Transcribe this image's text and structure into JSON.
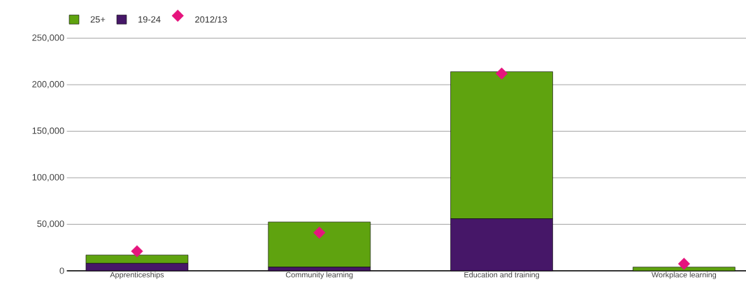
{
  "chart_data": {
    "type": "bar",
    "stacked": true,
    "categories": [
      "Apprenticeships",
      "Community learning",
      "Education and training",
      "Workplace learning"
    ],
    "series": [
      {
        "name": "19-24",
        "color": "#461768",
        "values": [
          8000,
          4000,
          56000,
          0
        ]
      },
      {
        "name": "25+",
        "color": "#5fa30f",
        "values": [
          9000,
          48500,
          158000,
          4000
        ]
      },
      {
        "name": "2012/13",
        "type": "scatter",
        "marker": "diamond",
        "color": "#e5147d",
        "x": [
          "Apprenticeships",
          "Community learning",
          "Education and training",
          "Workplace learning"
        ],
        "values": [
          21000,
          41000,
          212000,
          7500
        ]
      }
    ],
    "ylim": [
      0,
      250000
    ],
    "yticks": [
      {
        "value": 0,
        "label": "0"
      },
      {
        "value": 50000,
        "label": "50,000"
      },
      {
        "value": 100000,
        "label": "100,000"
      },
      {
        "value": 150000,
        "label": "150,000"
      },
      {
        "value": 200000,
        "label": "200,000"
      },
      {
        "value": 250000,
        "label": "250,000"
      }
    ],
    "grid": "y",
    "legend": "top left"
  }
}
